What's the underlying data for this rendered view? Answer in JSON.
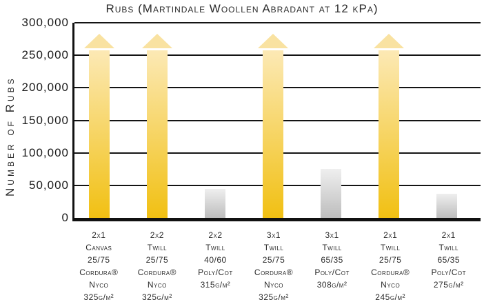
{
  "chart_data": {
    "type": "bar",
    "title": "Rubs (Martindale Woollen Abradant at 12 kPa)",
    "ylabel": "Number of Rubs",
    "xlabel": "",
    "ylim": [
      0,
      300000
    ],
    "ytick_interval": 50000,
    "yticks": [
      "300,000",
      "250,000",
      "200,000",
      "150,000",
      "100,000",
      "50,000",
      "0"
    ],
    "grid": true,
    "legend": null,
    "categories": [
      "2x1 Canvas 25/75 Cordura® Nyco 325g/m²",
      "2x2 Twill 25/75 Cordura® Nyco 325g/m²",
      "2x2 Twill 40/60 Poly/Cot 315g/m²",
      "3x1 Twill 25/75 Cordura® Nyco 325g/m²",
      "3x1 Twill 65/35 Poly/Cot 308g/m²",
      "2x1 Twill 25/75 Cordura® Nyco 245g/m²",
      "2x1 Twill 65/35 Poly/Cot 275g/m²"
    ],
    "values": [
      250000,
      250000,
      45000,
      250000,
      75000,
      250000,
      37000
    ],
    "bars": [
      {
        "lines": [
          "2x1",
          "Canvas",
          "25/75",
          "Cordura®",
          "Nyco",
          "325g/m²"
        ],
        "value": 250000,
        "exceeds_scale": true,
        "style": "gold-arrow"
      },
      {
        "lines": [
          "2x2",
          "Twill",
          "25/75",
          "Cordura®",
          "Nyco",
          "325g/m²"
        ],
        "value": 250000,
        "exceeds_scale": true,
        "style": "gold-arrow"
      },
      {
        "lines": [
          "2x2",
          "Twill",
          "40/60",
          "Poly/Cot",
          "315g/m²"
        ],
        "value": 45000,
        "exceeds_scale": false,
        "style": "gray"
      },
      {
        "lines": [
          "3x1",
          "Twill",
          "25/75",
          "Cordura®",
          "Nyco",
          "325g/m²"
        ],
        "value": 250000,
        "exceeds_scale": true,
        "style": "gold-arrow"
      },
      {
        "lines": [
          "3x1",
          "Twill",
          "65/35",
          "Poly/Cot",
          "308g/m²"
        ],
        "value": 75000,
        "exceeds_scale": false,
        "style": "gray"
      },
      {
        "lines": [
          "2x1",
          "Twill",
          "25/75",
          "Cordura®",
          "Nyco",
          "245g/m²"
        ],
        "value": 250000,
        "exceeds_scale": true,
        "style": "gold-arrow"
      },
      {
        "lines": [
          "2x1",
          "Twill",
          "65/35",
          "Poly/Cot",
          "275g/m²"
        ],
        "value": 37000,
        "exceeds_scale": false,
        "style": "gray"
      }
    ],
    "colors": {
      "gold_top": "#fce9b5",
      "gold_bottom": "#f1c013",
      "gold_arrowhead": "#f9e2a1",
      "gray_top": "#efefef",
      "gray_bottom": "#bdbdbd",
      "axis": "#111111",
      "text": "#231f20"
    }
  }
}
